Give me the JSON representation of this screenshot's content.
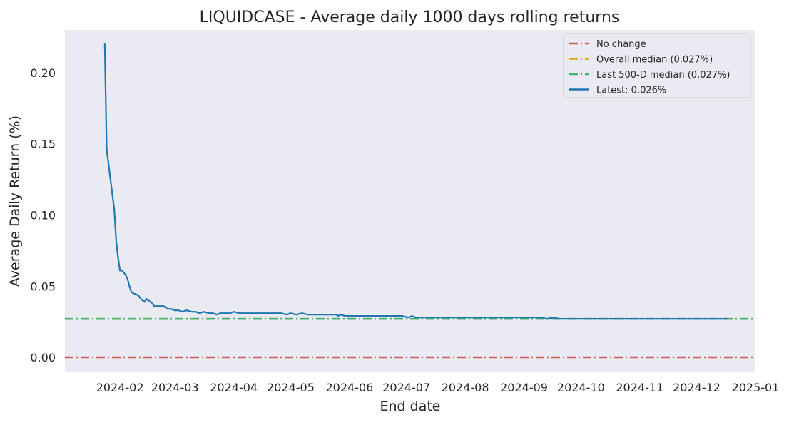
{
  "chart_data": {
    "type": "line",
    "title": "LIQUIDCASE - Average daily 1000 days rolling returns",
    "xlabel": "End date",
    "ylabel": "Average Daily Return (%)",
    "x_tick_labels": [
      "2024-02",
      "2024-03",
      "2024-04",
      "2024-05",
      "2024-06",
      "2024-07",
      "2024-08",
      "2024-09",
      "2024-10",
      "2024-11",
      "2024-12",
      "2025-01"
    ],
    "y_tick_labels": [
      "0.00",
      "0.05",
      "0.10",
      "0.15",
      "0.20"
    ],
    "y_ticks": [
      0,
      0.05,
      0.1,
      0.15,
      0.2
    ],
    "xlim": [
      "2024-01-03",
      "2025-01-01"
    ],
    "ylim": [
      -0.01,
      0.23
    ],
    "grid": false,
    "legend_position": "top-right",
    "series": [
      {
        "name": "Latest: 0.026%",
        "color": "#1f77b4",
        "style": "solid",
        "points": [
          [
            "2024-01-24",
            0.22
          ],
          [
            "2024-01-25",
            0.146
          ],
          [
            "2024-01-27",
            0.125
          ],
          [
            "2024-01-29",
            0.104
          ],
          [
            "2024-01-30",
            0.082
          ],
          [
            "2024-01-31",
            0.07
          ],
          [
            "2024-02-01",
            0.061
          ],
          [
            "2024-02-02",
            0.061
          ],
          [
            "2024-02-04",
            0.058
          ],
          [
            "2024-02-05",
            0.055
          ],
          [
            "2024-02-06",
            0.05
          ],
          [
            "2024-02-07",
            0.046
          ],
          [
            "2024-02-08",
            0.045
          ],
          [
            "2024-02-10",
            0.044
          ],
          [
            "2024-02-11",
            0.043
          ],
          [
            "2024-02-12",
            0.041
          ],
          [
            "2024-02-14",
            0.039
          ],
          [
            "2024-02-15",
            0.041
          ],
          [
            "2024-02-17",
            0.039
          ],
          [
            "2024-02-18",
            0.038
          ],
          [
            "2024-02-19",
            0.036
          ],
          [
            "2024-02-24",
            0.036
          ],
          [
            "2024-02-26",
            0.034
          ],
          [
            "2024-02-28",
            0.034
          ],
          [
            "2024-03-01",
            0.033
          ],
          [
            "2024-03-03",
            0.033
          ],
          [
            "2024-03-05",
            0.032
          ],
          [
            "2024-03-07",
            0.033
          ],
          [
            "2024-03-10",
            0.032
          ],
          [
            "2024-03-12",
            0.032
          ],
          [
            "2024-03-14",
            0.031
          ],
          [
            "2024-03-16",
            0.032
          ],
          [
            "2024-03-19",
            0.031
          ],
          [
            "2024-03-21",
            0.031
          ],
          [
            "2024-03-23",
            0.03
          ],
          [
            "2024-03-25",
            0.031
          ],
          [
            "2024-03-30",
            0.031
          ],
          [
            "2024-04-01",
            0.032
          ],
          [
            "2024-04-04",
            0.031
          ],
          [
            "2024-04-20",
            0.031
          ],
          [
            "2024-04-26",
            0.031
          ],
          [
            "2024-04-29",
            0.03
          ],
          [
            "2024-05-01",
            0.031
          ],
          [
            "2024-05-04",
            0.03
          ],
          [
            "2024-05-07",
            0.031
          ],
          [
            "2024-05-10",
            0.03
          ],
          [
            "2024-05-25",
            0.03
          ],
          [
            "2024-05-26",
            0.029
          ],
          [
            "2024-05-27",
            0.03
          ],
          [
            "2024-05-30",
            0.029
          ],
          [
            "2024-06-29",
            0.029
          ],
          [
            "2024-07-02",
            0.028
          ],
          [
            "2024-07-04",
            0.029
          ],
          [
            "2024-07-06",
            0.028
          ],
          [
            "2024-08-01",
            0.028
          ],
          [
            "2024-09-10",
            0.028
          ],
          [
            "2024-09-13",
            0.027
          ],
          [
            "2024-09-16",
            0.028
          ],
          [
            "2024-09-20",
            0.027
          ],
          [
            "2024-10-15",
            0.027
          ],
          [
            "2024-11-20",
            0.027
          ],
          [
            "2024-12-15",
            0.027
          ],
          [
            "2024-12-17",
            0.027
          ]
        ]
      }
    ],
    "reference_lines": [
      {
        "name": "No change",
        "y": 0.0,
        "color": "#cd5c5c",
        "style": "dashdot"
      },
      {
        "name": "Overall median (0.027%)",
        "y": 0.027,
        "color": "#daa520",
        "style": "dashdot"
      },
      {
        "name": "Last 500-D median (0.027%)",
        "y": 0.027,
        "color": "#3cb371",
        "style": "dashdot"
      }
    ],
    "legend_entries": [
      {
        "label": "No change",
        "color": "#cd5c5c",
        "style": "dashdot"
      },
      {
        "label": "Overall median (0.027%)",
        "color": "#daa520",
        "style": "dashdot"
      },
      {
        "label": "Last 500-D median (0.027%)",
        "color": "#3cb371",
        "style": "dashdot"
      },
      {
        "label": "Latest: 0.026%",
        "color": "#1f77b4",
        "style": "solid"
      }
    ],
    "colors": {
      "plot_background": "#eaeaf2",
      "figure_background": "#ffffff"
    }
  }
}
